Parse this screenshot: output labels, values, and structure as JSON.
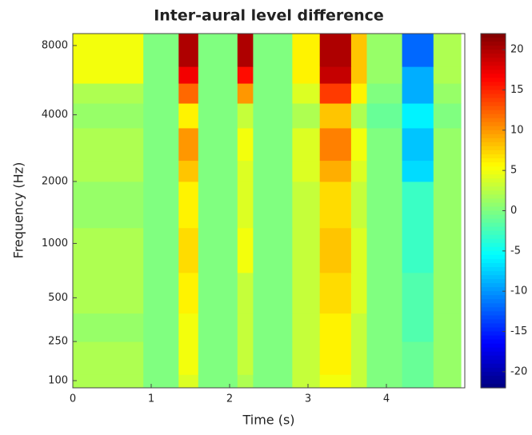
{
  "chart_data": {
    "type": "heatmap",
    "title": "Inter-aural level difference",
    "xlabel": "Time (s)",
    "ylabel": "Frequency (Hz)",
    "xbins": [
      0,
      0.9,
      1.0,
      1.35,
      1.6,
      2.1,
      2.3,
      2.8,
      3.15,
      3.55,
      3.75,
      4.2,
      4.6,
      4.95
    ],
    "ybins": [
      78,
      120,
      250,
      400,
      700,
      1200,
      2000,
      2500,
      3500,
      4500,
      5500,
      6500,
      9000
    ],
    "values": [
      [
        2,
        0,
        0,
        4,
        0,
        2,
        0,
        3,
        5,
        3,
        0,
        -1,
        1
      ],
      [
        2,
        0,
        0,
        5,
        0,
        3,
        0,
        3,
        6,
        3,
        0,
        -1,
        1
      ],
      [
        1,
        0,
        0,
        5,
        0,
        3,
        0,
        3,
        6,
        3,
        0,
        -2,
        1
      ],
      [
        2,
        0,
        0,
        6,
        0,
        3,
        0,
        3,
        7,
        4,
        0,
        -2,
        1
      ],
      [
        2,
        0,
        0,
        7,
        0,
        5,
        0,
        3,
        8,
        4,
        0,
        -3,
        1
      ],
      [
        1,
        0,
        0,
        6,
        0,
        4,
        0,
        3,
        7,
        3,
        0,
        -3,
        1
      ],
      [
        2,
        0,
        0,
        8,
        0,
        4,
        0,
        4,
        9,
        4,
        0,
        -7,
        1
      ],
      [
        2,
        0,
        0,
        10,
        0,
        5,
        0,
        4,
        11,
        5,
        0,
        -8,
        1
      ],
      [
        1,
        0,
        0,
        6,
        0,
        3,
        0,
        2,
        8,
        2,
        -1,
        -6,
        0
      ],
      [
        2,
        0,
        0,
        12,
        0,
        10,
        0,
        4,
        14,
        6,
        0,
        -9,
        1
      ],
      [
        5,
        0,
        0,
        17,
        0,
        16,
        0,
        6,
        19,
        8,
        1,
        -9,
        2
      ],
      [
        5,
        0,
        0,
        20,
        0,
        20,
        0,
        6,
        20,
        8,
        1,
        -12,
        2
      ]
    ],
    "xlim": [
      0,
      5
    ],
    "xticks": [
      0,
      1,
      2,
      3,
      4
    ],
    "ylim": [
      78,
      9000
    ],
    "yscale": "erb",
    "yticks": [
      100,
      250,
      500,
      1000,
      2000,
      4000,
      8000
    ],
    "colormap": "jet",
    "clim": [
      -22,
      22
    ],
    "cticks": [
      -20,
      -15,
      -10,
      -5,
      0,
      5,
      10,
      15,
      20
    ]
  }
}
